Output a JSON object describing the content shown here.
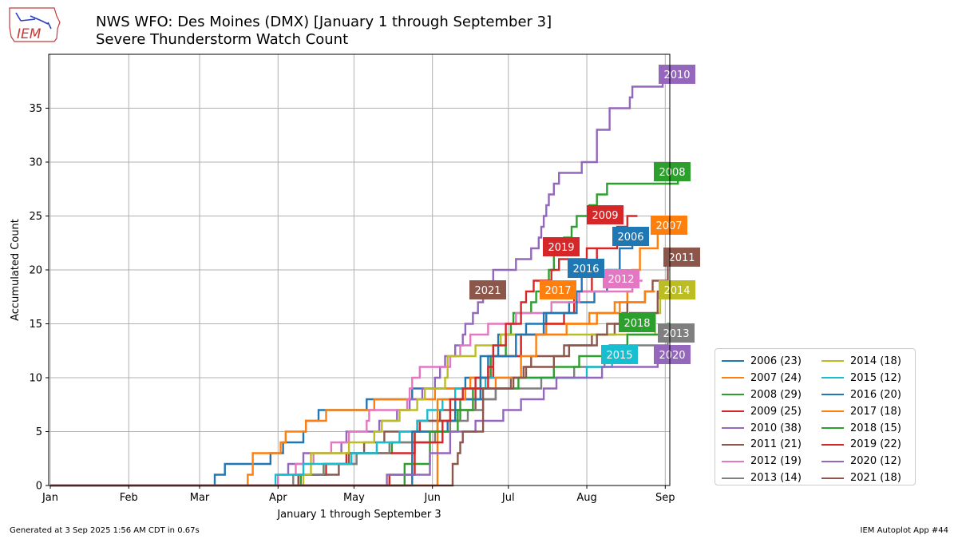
{
  "header": {
    "title_line1": "NWS WFO: Des Moines (DMX) [January 1 through September 3]",
    "title_line2": "Severe Thunderstorm Watch Count",
    "logo_text": "IEM"
  },
  "footer": {
    "generated": "Generated at 3 Sep 2025 1:56 AM CDT in 0.67s",
    "app": "IEM Autoplot App #44"
  },
  "chart_data": {
    "type": "line",
    "title": "NWS WFO: Des Moines (DMX) [January 1 through September 3]",
    "subtitle": "Severe Thunderstorm Watch Count",
    "xlabel": "January 1 through September 3",
    "ylabel": "Accumulated Count",
    "x_ticks": [
      "Jan",
      "Feb",
      "Mar",
      "Apr",
      "May",
      "Jun",
      "Jul",
      "Aug",
      "Sep"
    ],
    "y_ticks": [
      0,
      5,
      10,
      15,
      20,
      25,
      30,
      35
    ],
    "xlim_day_of_year": [
      0,
      245
    ],
    "ylim": [
      0,
      40
    ],
    "grid": true,
    "legend_placement": "lower-right outside",
    "x_unit": "day of year",
    "series": [
      {
        "name": "2006 (23)",
        "label": "2006",
        "color": "#1f77b4",
        "points": [
          [
            65,
            1
          ],
          [
            69,
            2
          ],
          [
            87,
            3
          ],
          [
            92,
            4
          ],
          [
            100,
            5
          ],
          [
            101,
            6
          ],
          [
            106,
            7
          ],
          [
            125,
            8
          ],
          [
            143,
            9
          ],
          [
            164,
            10
          ],
          [
            170,
            12
          ],
          [
            177,
            14
          ],
          [
            188,
            15
          ],
          [
            196,
            16
          ],
          [
            205,
            17
          ],
          [
            215,
            18
          ],
          [
            220,
            20
          ],
          [
            225,
            22
          ],
          [
            230,
            23
          ]
        ]
      },
      {
        "name": "2007 (24)",
        "label": "2007",
        "color": "#ff7f0e",
        "points": [
          [
            78,
            1
          ],
          [
            80,
            3
          ],
          [
            91,
            4
          ],
          [
            93,
            5
          ],
          [
            101,
            6
          ],
          [
            109,
            7
          ],
          [
            128,
            8
          ],
          [
            152,
            9
          ],
          [
            166,
            10
          ],
          [
            174,
            12
          ],
          [
            186,
            14
          ],
          [
            196,
            15
          ],
          [
            213,
            16
          ],
          [
            223,
            17
          ],
          [
            228,
            18
          ],
          [
            230,
            20
          ],
          [
            233,
            22
          ],
          [
            240,
            24
          ]
        ]
      },
      {
        "name": "2008 (29)",
        "label": "2008",
        "color": "#2ca02c",
        "points": [
          [
            99,
            1
          ],
          [
            108,
            2
          ],
          [
            121,
            3
          ],
          [
            135,
            4
          ],
          [
            144,
            5
          ],
          [
            153,
            6
          ],
          [
            162,
            8
          ],
          [
            170,
            10
          ],
          [
            174,
            12
          ],
          [
            180,
            14
          ],
          [
            182,
            15
          ],
          [
            183,
            16
          ],
          [
            190,
            17
          ],
          [
            192,
            18
          ],
          [
            194,
            19
          ],
          [
            197,
            20
          ],
          [
            199,
            22
          ],
          [
            203,
            23
          ],
          [
            206,
            24
          ],
          [
            208,
            25
          ],
          [
            213,
            26
          ],
          [
            216,
            27
          ],
          [
            220,
            28
          ],
          [
            248,
            29
          ]
        ]
      },
      {
        "name": "2009 (25)",
        "label": "2009",
        "color": "#d62728",
        "points": [
          [
            98,
            1
          ],
          [
            109,
            2
          ],
          [
            117,
            3
          ],
          [
            144,
            5
          ],
          [
            146,
            6
          ],
          [
            160,
            8
          ],
          [
            168,
            10
          ],
          [
            175,
            12
          ],
          [
            186,
            14
          ],
          [
            195,
            15
          ],
          [
            203,
            16
          ],
          [
            207,
            18
          ],
          [
            214,
            20
          ],
          [
            216,
            22
          ],
          [
            224,
            24
          ],
          [
            228,
            25
          ]
        ]
      },
      {
        "name": "2010 (38)",
        "label": "2010",
        "color": "#9467bd",
        "points": [
          [
            90,
            1
          ],
          [
            94,
            2
          ],
          [
            100,
            3
          ],
          [
            115,
            4
          ],
          [
            117,
            5
          ],
          [
            130,
            6
          ],
          [
            137,
            7
          ],
          [
            142,
            8
          ],
          [
            147,
            9
          ],
          [
            152,
            10
          ],
          [
            154,
            11
          ],
          [
            156,
            12
          ],
          [
            160,
            13
          ],
          [
            163,
            14
          ],
          [
            164,
            15
          ],
          [
            167,
            16
          ],
          [
            169,
            17
          ],
          [
            171,
            18
          ],
          [
            175,
            20
          ],
          [
            184,
            21
          ],
          [
            190,
            22
          ],
          [
            193,
            23
          ],
          [
            194,
            24
          ],
          [
            195,
            25
          ],
          [
            196,
            26
          ],
          [
            197,
            27
          ],
          [
            199,
            28
          ],
          [
            201,
            29
          ],
          [
            210,
            30
          ],
          [
            216,
            33
          ],
          [
            221,
            35
          ],
          [
            229,
            36
          ],
          [
            230,
            37
          ],
          [
            242,
            38
          ]
        ]
      },
      {
        "name": "2011 (21)",
        "label": "2011",
        "color": "#8c564b",
        "points": [
          [
            98,
            1
          ],
          [
            114,
            2
          ],
          [
            118,
            3
          ],
          [
            124,
            4
          ],
          [
            132,
            5
          ],
          [
            145,
            6
          ],
          [
            154,
            7
          ],
          [
            168,
            8
          ],
          [
            176,
            9
          ],
          [
            182,
            10
          ],
          [
            187,
            11
          ],
          [
            190,
            12
          ],
          [
            203,
            13
          ],
          [
            214,
            14
          ],
          [
            223,
            15
          ],
          [
            226,
            16
          ],
          [
            228,
            17
          ],
          [
            235,
            18
          ],
          [
            238,
            19
          ],
          [
            244,
            21
          ]
        ]
      },
      {
        "name": "2012 (19)",
        "label": "2012",
        "color": "#e377c2",
        "points": [
          [
            90,
            1
          ],
          [
            97,
            2
          ],
          [
            104,
            3
          ],
          [
            111,
            4
          ],
          [
            118,
            5
          ],
          [
            125,
            6
          ],
          [
            126,
            7
          ],
          [
            141,
            8
          ],
          [
            142,
            9
          ],
          [
            143,
            10
          ],
          [
            146,
            11
          ],
          [
            158,
            12
          ],
          [
            162,
            13
          ],
          [
            166,
            14
          ],
          [
            173,
            15
          ],
          [
            184,
            16
          ],
          [
            198,
            17
          ],
          [
            209,
            18
          ],
          [
            230,
            19
          ]
        ]
      },
      {
        "name": "2013 (14)",
        "label": "2013",
        "color": "#7f7f7f",
        "points": [
          [
            96,
            1
          ],
          [
            108,
            2
          ],
          [
            121,
            3
          ],
          [
            134,
            4
          ],
          [
            152,
            5
          ],
          [
            158,
            6
          ],
          [
            165,
            7
          ],
          [
            171,
            8
          ],
          [
            176,
            9
          ],
          [
            194,
            10
          ],
          [
            207,
            11
          ],
          [
            219,
            12
          ],
          [
            229,
            13
          ],
          [
            244,
            14
          ]
        ]
      },
      {
        "name": "2014 (18)",
        "label": "2014",
        "color": "#bcbd22",
        "points": [
          [
            100,
            1
          ],
          [
            103,
            3
          ],
          [
            118,
            4
          ],
          [
            128,
            5
          ],
          [
            131,
            6
          ],
          [
            138,
            7
          ],
          [
            145,
            8
          ],
          [
            148,
            9
          ],
          [
            156,
            10
          ],
          [
            157,
            12
          ],
          [
            168,
            13
          ],
          [
            178,
            14
          ],
          [
            239,
            16
          ],
          [
            241,
            18
          ]
        ]
      },
      {
        "name": "2015 (12)",
        "label": "2015",
        "color": "#17becf",
        "points": [
          [
            89,
            1
          ],
          [
            100,
            2
          ],
          [
            119,
            3
          ],
          [
            129,
            4
          ],
          [
            138,
            5
          ],
          [
            145,
            6
          ],
          [
            149,
            7
          ],
          [
            155,
            8
          ],
          [
            160,
            9
          ],
          [
            172,
            10
          ],
          [
            212,
            11
          ],
          [
            222,
            12
          ]
        ]
      },
      {
        "name": "2016 (20)",
        "label": "2016",
        "color": "#1f77b4",
        "points": [
          [
            143,
            5
          ],
          [
            157,
            6
          ],
          [
            160,
            8
          ],
          [
            170,
            10
          ],
          [
            173,
            12
          ],
          [
            184,
            14
          ],
          [
            195,
            16
          ],
          [
            208,
            18
          ],
          [
            210,
            20
          ]
        ]
      },
      {
        "name": "2017 (18)",
        "label": "2017",
        "color": "#ff7f0e",
        "points": [
          [
            153,
            8
          ],
          [
            164,
            9
          ],
          [
            176,
            10
          ],
          [
            186,
            12
          ],
          [
            192,
            14
          ],
          [
            204,
            15
          ],
          [
            216,
            16
          ],
          [
            225,
            17
          ],
          [
            235,
            18
          ]
        ]
      },
      {
        "name": "2018 (15)",
        "label": "2018",
        "color": "#2ca02c",
        "points": [
          [
            140,
            2
          ],
          [
            150,
            5
          ],
          [
            161,
            7
          ],
          [
            167,
            9
          ],
          [
            185,
            10
          ],
          [
            193,
            10
          ],
          [
            199,
            11
          ],
          [
            209,
            12
          ],
          [
            221,
            13
          ],
          [
            228,
            14
          ],
          [
            244,
            15
          ]
        ]
      },
      {
        "name": "2019 (22)",
        "label": "2019",
        "color": "#d62728",
        "points": [
          [
            134,
            1
          ],
          [
            144,
            4
          ],
          [
            155,
            6
          ],
          [
            158,
            8
          ],
          [
            163,
            9
          ],
          [
            173,
            11
          ],
          [
            175,
            13
          ],
          [
            180,
            15
          ],
          [
            186,
            17
          ],
          [
            188,
            18
          ],
          [
            191,
            19
          ],
          [
            198,
            20
          ],
          [
            201,
            21
          ],
          [
            212,
            22
          ]
        ]
      },
      {
        "name": "2020 (12)",
        "label": "2020",
        "color": "#9467bd",
        "points": [
          [
            133,
            1
          ],
          [
            150,
            3
          ],
          [
            158,
            5
          ],
          [
            168,
            6
          ],
          [
            179,
            7
          ],
          [
            186,
            8
          ],
          [
            195,
            9
          ],
          [
            200,
            10
          ],
          [
            218,
            11
          ],
          [
            240,
            12
          ]
        ]
      },
      {
        "name": "2021 (18)",
        "label": "2021",
        "color": "#8c564b",
        "points": [
          [
            154,
            0
          ],
          [
            159,
            2
          ],
          [
            161,
            3
          ],
          [
            162,
            4
          ],
          [
            163,
            5
          ],
          [
            171,
            9
          ],
          [
            183,
            10
          ],
          [
            188,
            11
          ],
          [
            199,
            12
          ],
          [
            205,
            13
          ],
          [
            216,
            14
          ],
          [
            220,
            15
          ],
          [
            229,
            16
          ],
          [
            240,
            18
          ]
        ]
      }
    ]
  }
}
